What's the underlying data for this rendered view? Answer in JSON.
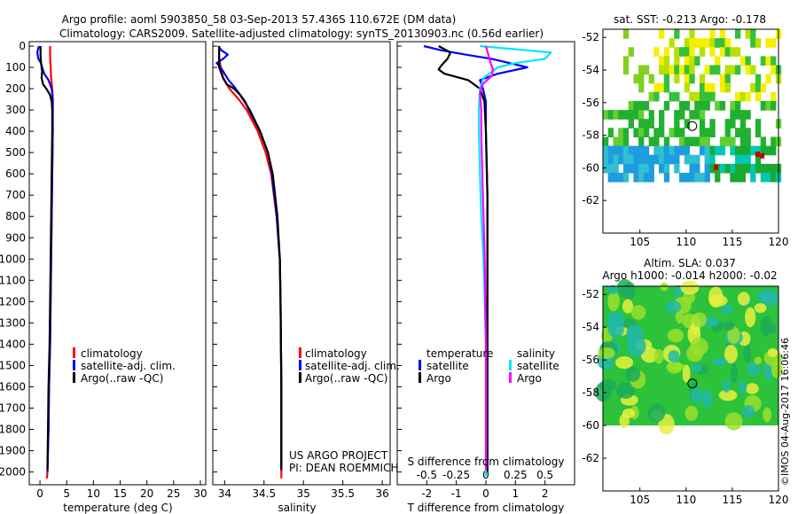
{
  "header": {
    "title_line1": "Argo profile: aoml 5903850_58 03-Sep-2013 57.436S 110.672E (DM data)",
    "title_line2": "Climatology: CARS2009. Satellite-adjusted climatology: synTS_20130903.nc (0.56d earlier)"
  },
  "colors": {
    "climatology": "#ff0000",
    "satellite": "#0000ff",
    "argo": "#000000",
    "argo_salinity_diff": "#ff00ff",
    "satellite_salinity_diff": "#00e5ff"
  },
  "credits": {
    "project": "US ARGO PROJECT",
    "pi": "PI: DEAN ROEMMICH"
  },
  "watermark": "©IMOS 04-Aug-2017 16:06:46",
  "chart_data": [
    {
      "id": "temperature",
      "type": "line",
      "xlabel": "temperature (deg C)",
      "ylabel": "",
      "xlim": [
        -2,
        31
      ],
      "ylim": [
        2060,
        0
      ],
      "xticks": [
        0,
        5,
        10,
        15,
        20,
        25,
        30
      ],
      "yticks": [
        0,
        100,
        200,
        300,
        400,
        500,
        600,
        700,
        800,
        900,
        1000,
        1100,
        1200,
        1300,
        1400,
        1500,
        1600,
        1700,
        1800,
        1900,
        2000
      ],
      "legend": [
        "climatology",
        "satellite-adj. clim.",
        "Argo(..raw -QC)"
      ],
      "series": [
        {
          "name": "climatology",
          "color": "#ff0000",
          "depth": [
            0,
            50,
            100,
            150,
            200,
            250,
            300,
            400,
            600,
            800,
            1000,
            1200,
            1400,
            1600,
            1800,
            2000,
            2030
          ],
          "values": [
            1.9,
            1.9,
            2.0,
            2.1,
            2.3,
            2.4,
            2.4,
            2.4,
            2.3,
            2.2,
            2.1,
            2.0,
            1.9,
            1.7,
            1.6,
            1.4,
            1.3
          ]
        },
        {
          "name": "satellite-adj. clim.",
          "color": "#0000ff",
          "depth": [
            0,
            30,
            60,
            80,
            100,
            130,
            160,
            200,
            250,
            300,
            400,
            600,
            800,
            1000,
            1200,
            1400,
            1600,
            1800,
            2000
          ],
          "values": [
            -0.2,
            -0.5,
            -0.3,
            0.2,
            0.4,
            0.8,
            1.6,
            2.2,
            2.4,
            2.4,
            2.4,
            2.3,
            2.2,
            2.1,
            2.0,
            1.9,
            1.7,
            1.6,
            1.4
          ]
        },
        {
          "name": "Argo(..raw -QC)",
          "color": "#000000",
          "depth": [
            0,
            40,
            80,
            120,
            150,
            180,
            200,
            230,
            260,
            300,
            400,
            600,
            800,
            1000,
            1200,
            1400,
            1600,
            1800,
            1990
          ],
          "values": [
            0.1,
            0.1,
            0.2,
            0.4,
            0.3,
            0.6,
            1.2,
            1.9,
            2.2,
            2.3,
            2.3,
            2.2,
            2.1,
            2.0,
            1.9,
            1.8,
            1.6,
            1.5,
            1.4
          ]
        }
      ]
    },
    {
      "id": "salinity",
      "type": "line",
      "xlabel": "salinity",
      "ylabel": "",
      "xlim": [
        33.85,
        36.1
      ],
      "ylim": [
        2060,
        0
      ],
      "xticks": [
        34,
        34.5,
        35,
        35.5,
        36
      ],
      "xtick_labels": [
        "34",
        "34.5",
        "35",
        "35.5",
        "36"
      ],
      "legend": [
        "climatology",
        "satellite-adj. clim.",
        "Argo(..raw -QC)"
      ],
      "series": [
        {
          "name": "climatology",
          "color": "#ff0000",
          "depth": [
            0,
            50,
            100,
            150,
            200,
            250,
            300,
            400,
            500,
            600,
            800,
            1000,
            1200,
            1600,
            2000,
            2030
          ],
          "values": [
            33.93,
            33.93,
            33.95,
            33.98,
            34.06,
            34.18,
            34.28,
            34.42,
            34.52,
            34.59,
            34.66,
            34.7,
            34.71,
            34.72,
            34.72,
            34.72
          ]
        },
        {
          "name": "satellite-adj. clim.",
          "color": "#0000ff",
          "depth": [
            0,
            20,
            40,
            60,
            80,
            100,
            130,
            160,
            190,
            220,
            260,
            300,
            400,
            500,
            600,
            800,
            1000,
            1200,
            1600,
            1990
          ],
          "values": [
            33.92,
            33.96,
            34.04,
            33.98,
            33.9,
            33.95,
            34.0,
            34.05,
            34.12,
            34.18,
            34.25,
            34.32,
            34.45,
            34.55,
            34.6,
            34.66,
            34.7,
            34.71,
            34.72,
            34.72
          ]
        },
        {
          "name": "Argo(..raw -QC)",
          "color": "#000000",
          "depth": [
            0,
            50,
            100,
            150,
            180,
            200,
            230,
            260,
            300,
            400,
            500,
            600,
            800,
            1000,
            1200,
            1600,
            1990
          ],
          "values": [
            33.93,
            33.93,
            33.93,
            33.98,
            34.03,
            34.12,
            34.2,
            34.26,
            34.31,
            34.45,
            34.55,
            34.61,
            34.67,
            34.7,
            34.71,
            34.72,
            34.72
          ]
        }
      ]
    },
    {
      "id": "differences",
      "type": "line",
      "xlabel": "T difference from climatology",
      "x2label": "S difference from climatology",
      "ylim": [
        2060,
        0
      ],
      "xlim_T": [
        -3,
        3
      ],
      "xticks_T": [
        -2,
        -1,
        0,
        1,
        2
      ],
      "xlim_S": [
        -0.75,
        0.75
      ],
      "xticks_S": [
        -0.5,
        -0.25,
        0,
        0.25,
        0.5
      ],
      "xtick_labels_S": [
        "-0.5",
        "-0.25",
        "0",
        "0.25",
        "0.5"
      ],
      "legend_T": {
        "heading": "temperature",
        "entries": [
          "satellite",
          "Argo"
        ]
      },
      "legend_S": {
        "heading": "salinity",
        "entries": [
          "satellite",
          "Argo"
        ]
      },
      "series": [
        {
          "name": "temperature satellite",
          "axis": "T",
          "color": "#0000ff",
          "depth": [
            0,
            20,
            40,
            60,
            80,
            100,
            130,
            160,
            200,
            260,
            400,
            700,
            1000,
            1400,
            1800,
            2000
          ],
          "values": [
            -2.1,
            -1.5,
            -0.7,
            0.2,
            0.8,
            1.4,
            0.4,
            -0.2,
            -0.1,
            0.0,
            0.0,
            0.05,
            0.05,
            0.05,
            0.05,
            0.05
          ]
        },
        {
          "name": "temperature Argo",
          "axis": "T",
          "color": "#000000",
          "depth": [
            0,
            30,
            60,
            90,
            110,
            130,
            160,
            200,
            260,
            400,
            700,
            1000,
            1400,
            1800,
            2000
          ],
          "values": [
            -1.6,
            -1.2,
            -1.3,
            -1.5,
            -1.6,
            -1.4,
            -0.6,
            -0.2,
            -0.05,
            0.0,
            0.05,
            0.05,
            0.05,
            0.05,
            0.05
          ]
        },
        {
          "name": "salinity satellite",
          "axis": "S",
          "color": "#00e5ff",
          "depth": [
            0,
            30,
            60,
            80,
            100,
            150,
            200,
            300,
            400,
            600,
            800,
            1000,
            1400,
            1800,
            2020
          ],
          "values": [
            -0.05,
            0.55,
            0.5,
            0.25,
            0.1,
            -0.02,
            -0.05,
            -0.06,
            -0.06,
            -0.05,
            -0.04,
            -0.02,
            0.0,
            0.0,
            0.0
          ]
        },
        {
          "name": "salinity Argo",
          "axis": "S",
          "color": "#ff00ff",
          "depth": [
            0,
            40,
            80,
            110,
            140,
            180,
            220,
            300,
            400,
            600,
            800,
            1000,
            1400,
            1800,
            1990
          ],
          "values": [
            0.0,
            0.02,
            0.04,
            0.06,
            0.05,
            -0.03,
            -0.05,
            -0.04,
            -0.04,
            -0.03,
            -0.02,
            -0.01,
            0.0,
            0.0,
            0.0
          ]
        }
      ]
    },
    {
      "id": "sst-map",
      "type": "heatmap",
      "title": "sat. SST: -0.213 Argo: -0.178",
      "xlim": [
        101,
        120
      ],
      "ylim": [
        -64,
        -51.5
      ],
      "xticks": [
        105,
        110,
        115,
        120
      ],
      "yticks": [
        -52,
        -54,
        -56,
        -58,
        -60,
        -62
      ],
      "marker": {
        "lon": 110.672,
        "lat": -57.436
      }
    },
    {
      "id": "sla-map",
      "type": "heatmap",
      "title_line1": "Altim. SLA: 0.037",
      "title_line2": "Argo h1000: -0.014 h2000: -0.02",
      "xlim": [
        101,
        120
      ],
      "ylim": [
        -64,
        -51.5
      ],
      "xticks": [
        105,
        110,
        115,
        120
      ],
      "yticks": [
        -52,
        -54,
        -56,
        -58,
        -60,
        -62
      ],
      "data_lat_range": [
        -60,
        -51.5
      ],
      "marker": {
        "lon": 110.672,
        "lat": -57.436
      }
    }
  ]
}
